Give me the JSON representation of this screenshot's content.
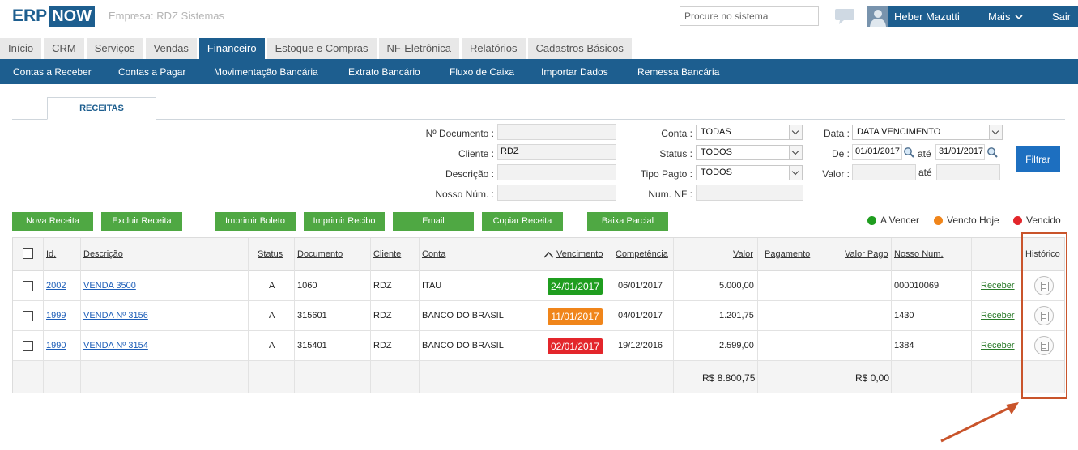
{
  "header": {
    "logo_erp": "ERP",
    "logo_now": "NOW",
    "company": "Empresa: RDZ Sistemas",
    "search_placeholder": "Procure no sistema",
    "user_name": "Heber Mazutti",
    "more_label": "Mais",
    "logout_label": "Sair"
  },
  "main_tabs": [
    {
      "label": "Início",
      "active": false
    },
    {
      "label": "CRM",
      "active": false
    },
    {
      "label": "Serviços",
      "active": false
    },
    {
      "label": "Vendas",
      "active": false
    },
    {
      "label": "Financeiro",
      "active": true
    },
    {
      "label": "Estoque e Compras",
      "active": false
    },
    {
      "label": "NF-Eletrônica",
      "active": false
    },
    {
      "label": "Relatórios",
      "active": false
    },
    {
      "label": "Cadastros Básicos",
      "active": false
    }
  ],
  "sub_nav": [
    "Contas a Receber",
    "Contas a Pagar",
    "Movimentação Bancária",
    "Extrato Bancário",
    "Fluxo de Caixa",
    "Importar Dados",
    "Remessa Bancária"
  ],
  "section_tab": "RECEITAS",
  "filters": {
    "documento_label": "Nº Documento :",
    "documento_value": "",
    "cliente_label": "Cliente :",
    "cliente_value": "RDZ",
    "descricao_label": "Descrição :",
    "descricao_value": "",
    "nosso_num_label": "Nosso Núm. :",
    "nosso_num_value": "",
    "conta_label": "Conta :",
    "conta_value": "TODAS",
    "status_label": "Status :",
    "status_value": "TODOS",
    "tipo_pagto_label": "Tipo Pagto :",
    "tipo_pagto_value": "TODOS",
    "num_nf_label": "Num. NF :",
    "num_nf_value": "",
    "data_label": "Data :",
    "data_value": "DATA VENCIMENTO",
    "de_label": "De :",
    "de_value": "01/01/2017",
    "ate_label": "até",
    "ate_value": "31/01/2017",
    "valor_label": "Valor :",
    "valor_de_value": "",
    "valor_ate_label": "até",
    "valor_ate_value": "",
    "filter_button": "Filtrar"
  },
  "actions": [
    "Nova Receita",
    "Excluir Receita",
    "Imprimir Boleto",
    "Imprimir Recibo",
    "Email",
    "Copiar Receita",
    "Baixa Parcial"
  ],
  "legend": [
    {
      "label": "A Vencer",
      "color": "#1f9d1f"
    },
    {
      "label": "Vencto Hoje",
      "color": "#f0851a"
    },
    {
      "label": "Vencido",
      "color": "#e3262b"
    }
  ],
  "table": {
    "headers": {
      "id": "Id.",
      "descricao": "Descrição",
      "status": "Status",
      "documento": "Documento",
      "cliente": "Cliente",
      "conta": "Conta",
      "vencimento": "Vencimento",
      "competencia": "Competência",
      "valor": "Valor",
      "pagamento": "Pagamento",
      "valor_pago": "Valor Pago",
      "nosso_num": "Nosso Num.",
      "historico": "Histórico"
    },
    "rows": [
      {
        "id": "2002",
        "descricao": "VENDA 3500",
        "status": "A",
        "documento": "1060",
        "cliente": "RDZ",
        "conta": "ITAU",
        "vencimento": "24/01/2017",
        "venc_color": "#1f9d1f",
        "competencia": "06/01/2017",
        "valor": "5.000,00",
        "pagamento": "",
        "valor_pago": "",
        "nosso_num": "000010069",
        "action": "Receber"
      },
      {
        "id": "1999",
        "descricao": "VENDA Nº 3156",
        "status": "A",
        "documento": "315601",
        "cliente": "RDZ",
        "conta": "BANCO DO BRASIL",
        "vencimento": "11/01/2017",
        "venc_color": "#f0851a",
        "competencia": "04/01/2017",
        "valor": "1.201,75",
        "pagamento": "",
        "valor_pago": "",
        "nosso_num": "1430",
        "action": "Receber"
      },
      {
        "id": "1990",
        "descricao": "VENDA Nº 3154",
        "status": "A",
        "documento": "315401",
        "cliente": "RDZ",
        "conta": "BANCO DO BRASIL",
        "vencimento": "02/01/2017",
        "venc_color": "#e3262b",
        "competencia": "19/12/2016",
        "valor": "2.599,00",
        "pagamento": "",
        "valor_pago": "",
        "nosso_num": "1384",
        "action": "Receber"
      }
    ],
    "totals": {
      "valor": "R$ 8.800,75",
      "valor_pago": "R$ 0,00"
    }
  },
  "colors": {
    "brand": "#1d5e8f",
    "action_green": "#4fa843",
    "filter_blue": "#1d6fc0",
    "annotation": "#c9542b"
  }
}
